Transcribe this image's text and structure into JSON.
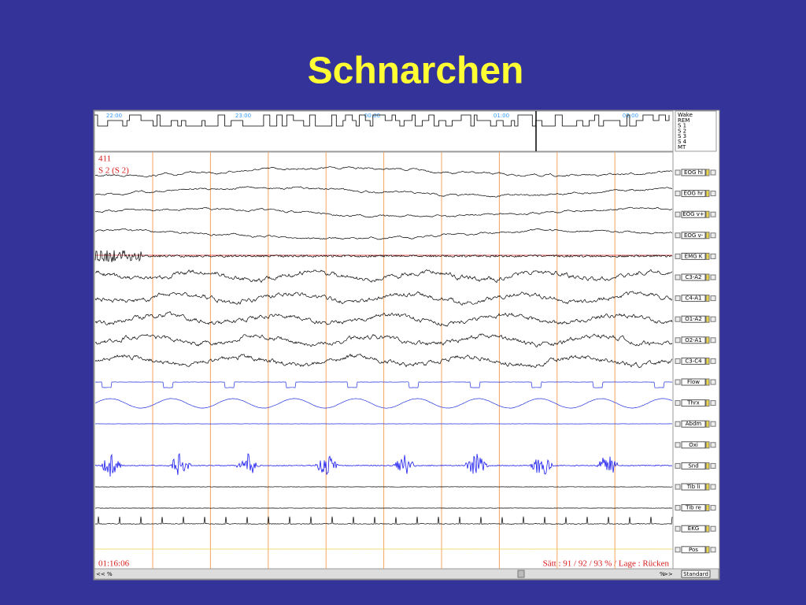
{
  "title": "Schnarchen",
  "hypnogram": {
    "times": [
      "22:00",
      "23:00",
      "00:00",
      "01:00",
      "02:00"
    ],
    "stages": [
      "Wake",
      "REM",
      "S 1",
      "S 2",
      "S 3",
      "S 4",
      "MT"
    ]
  },
  "recording": {
    "epoch": "411",
    "stage": "S 2 (S 2)",
    "time": "01:16:06",
    "status": "Sätt : 91 / 92 / 93 % / Lage : Rücken"
  },
  "channels": [
    "EOG hl",
    "EOG hr",
    "EOG v+",
    "EOG v-",
    "EMG K",
    "C3-A2",
    "C4-A1",
    "O1-A2",
    "O2-A1",
    "C3-C4",
    "Flow",
    "Thrx",
    "Abdm",
    "Oxi",
    "Snd",
    "Tib li",
    "Tib re",
    "EKG",
    "Pos"
  ],
  "controls": {
    "back": "<<",
    "zoom": "%",
    "forward": ">>",
    "montage": "Standard"
  }
}
